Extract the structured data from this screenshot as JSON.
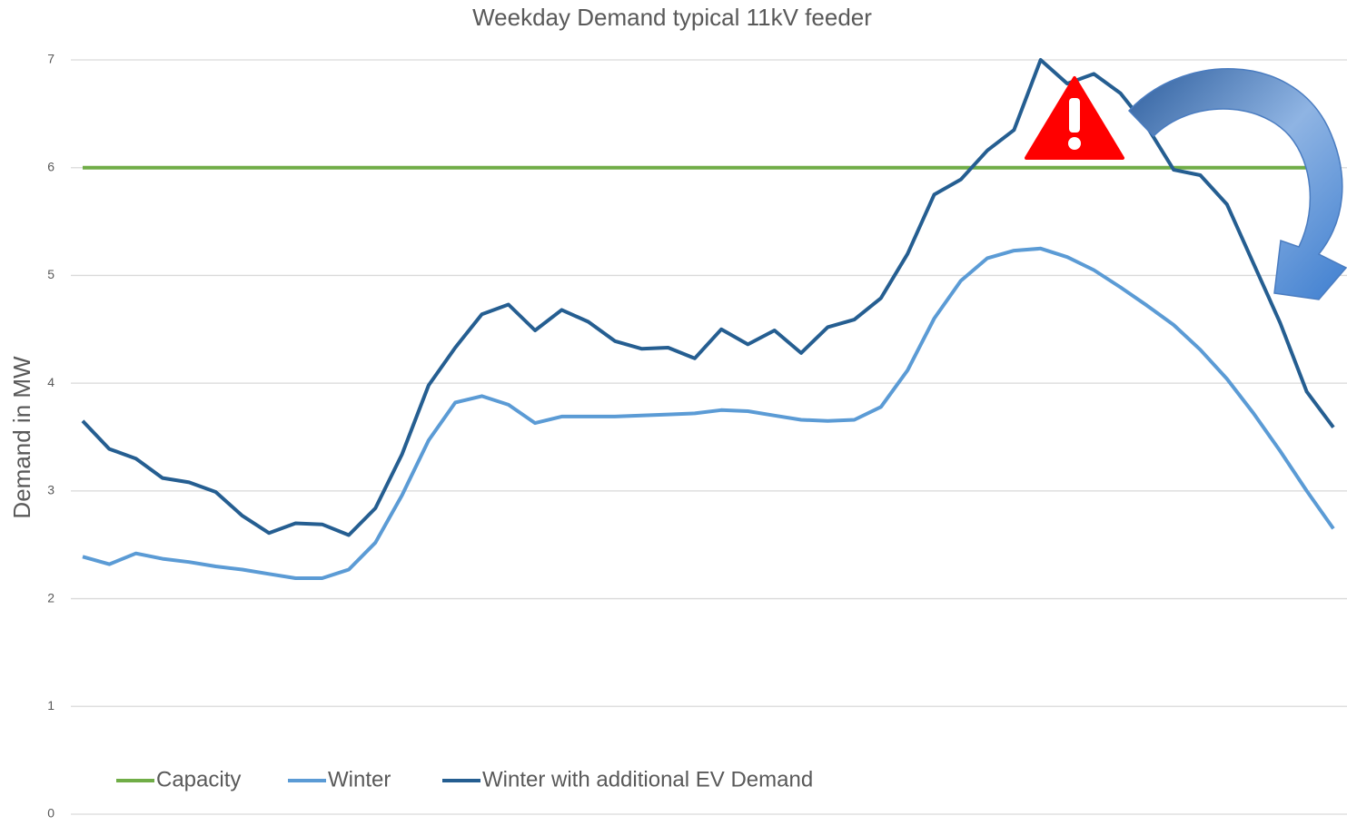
{
  "chart_data": {
    "type": "line",
    "title": "Weekday Demand  typical 11kV feeder",
    "y_label": "Demand in MW",
    "categories": [
      null,
      null,
      null,
      null,
      null,
      null,
      null,
      null,
      null,
      null,
      null,
      null,
      null,
      null,
      null,
      null,
      null,
      null,
      null,
      null,
      null,
      null,
      null,
      null,
      null,
      null,
      null,
      null,
      null,
      null,
      null,
      null,
      null,
      null,
      null,
      null,
      null,
      null,
      null,
      null,
      null,
      null,
      null,
      null,
      null,
      null,
      null,
      null
    ],
    "series": [
      {
        "name": "Capacity",
        "color": "#70ad47",
        "values": [
          6,
          6,
          6,
          6,
          6,
          6,
          6,
          6,
          6,
          6,
          6,
          6,
          6,
          6,
          6,
          6,
          6,
          6,
          6,
          6,
          6,
          6,
          6,
          6,
          6,
          6,
          6,
          6,
          6,
          6,
          6,
          6,
          6,
          6,
          6,
          6,
          6,
          6,
          6,
          6,
          6,
          6,
          6,
          6,
          6,
          6,
          6,
          6
        ]
      },
      {
        "name": "Winter",
        "color": "#5b9bd5",
        "values": [
          2.39,
          2.32,
          2.42,
          2.37,
          2.34,
          2.3,
          2.27,
          2.23,
          2.19,
          2.19,
          2.27,
          2.52,
          2.96,
          3.47,
          3.82,
          3.88,
          3.8,
          3.63,
          3.69,
          3.69,
          3.69,
          3.7,
          3.71,
          3.72,
          3.75,
          3.74,
          3.7,
          3.66,
          3.65,
          3.66,
          3.78,
          4.12,
          4.6,
          4.95,
          5.16,
          5.23,
          5.25,
          5.17,
          5.05,
          4.89,
          4.72,
          4.54,
          4.31,
          4.04,
          3.72,
          3.37,
          3.0,
          2.65
        ]
      },
      {
        "name": "Winter with additional EV Demand",
        "color": "#255e91",
        "values": [
          3.65,
          3.39,
          3.3,
          3.12,
          3.08,
          2.99,
          2.77,
          2.61,
          2.7,
          2.69,
          2.59,
          2.84,
          3.34,
          3.98,
          4.33,
          4.64,
          4.73,
          4.49,
          4.68,
          4.57,
          4.39,
          4.32,
          4.33,
          4.23,
          4.5,
          4.36,
          4.49,
          4.28,
          4.52,
          4.59,
          4.79,
          5.2,
          5.75,
          5.89,
          6.16,
          6.35,
          7.0,
          6.78,
          6.87,
          6.69,
          6.38,
          5.98,
          5.93,
          5.66,
          5.11,
          4.56,
          3.92,
          3.59
        ]
      }
    ],
    "ylim": [
      0,
      7
    ],
    "yticks": [
      0,
      1,
      2,
      3,
      4,
      5,
      6,
      7
    ],
    "grid": true,
    "legend": "bottom"
  }
}
